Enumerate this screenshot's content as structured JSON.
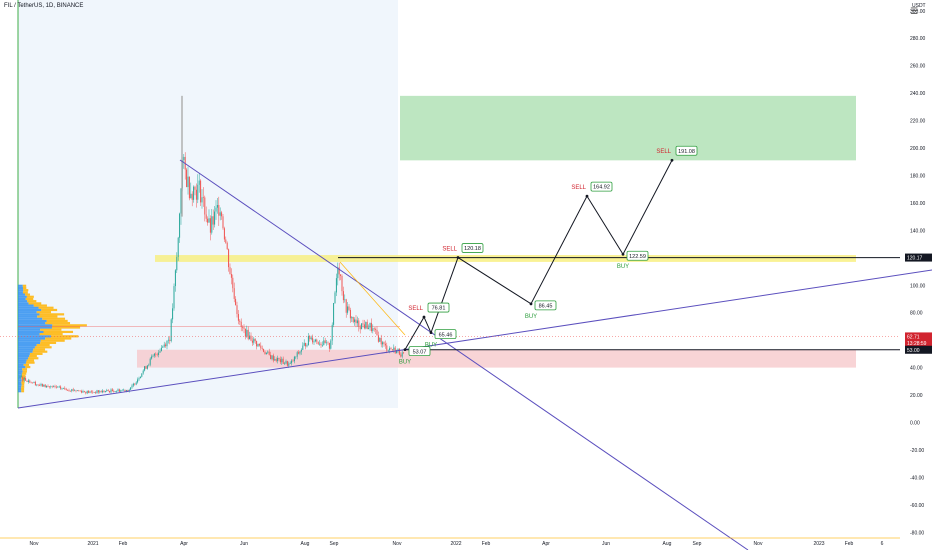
{
  "header": {
    "symbol_title": "FIL / TetherUS, 1D, BINANCE",
    "unit": "USDT",
    "menu_icon": "hamburger-menu-icon"
  },
  "chart_data": {
    "type": "line",
    "title": "",
    "xlabel": "",
    "ylabel": "",
    "x_ticks": [
      "Nov",
      "2021",
      "Feb",
      "Apr",
      "Jun",
      "Aug",
      "Sep",
      "Nov",
      "2022",
      "Feb",
      "Apr",
      "Jun",
      "Aug",
      "Sep",
      "Nov",
      "2023",
      "Feb",
      "6"
    ],
    "y_ticks": [
      300,
      280,
      260,
      240,
      220,
      200,
      180,
      160,
      140,
      120,
      100,
      80,
      60,
      40,
      20,
      0,
      -20,
      -40,
      -60,
      -80
    ],
    "y_tick_labels": [
      "300.00",
      "280.00",
      "260.00",
      "240.00",
      "220.00",
      "200.00",
      "180.00",
      "160.00",
      "140.00",
      "120.00",
      "100.00",
      "80.00",
      "60.00",
      "40.00",
      "20.00",
      "0.00",
      "-20.00",
      "-40.00",
      "-60.00",
      "-80.00"
    ],
    "ylim": [
      -88,
      305
    ],
    "grid": false,
    "price_tags": [
      {
        "text": "120.17",
        "value": 120.17,
        "color": "#131722"
      },
      {
        "text": "62.71",
        "value": 62.71,
        "color": "#d1242f"
      },
      {
        "text": "13:28:59",
        "value": 57.8,
        "color": "#d1242f"
      },
      {
        "text": "53.00",
        "value": 53.0,
        "color": "#131722"
      }
    ],
    "zones": [
      {
        "name": "target-zone",
        "y_from": 191,
        "y_to": 238,
        "color": "#9ad89f"
      },
      {
        "name": "resistance-band",
        "y_from": 117,
        "y_to": 122,
        "color": "#f7ef7a"
      },
      {
        "name": "support-zone",
        "y_from": 40,
        "y_to": 53,
        "color": "#f6c9cc"
      }
    ],
    "horizontal_levels": [
      120.17,
      53.0
    ],
    "projection": {
      "points": [
        {
          "label": "53.07",
          "value": 53.07,
          "signal": "BUY"
        },
        {
          "label": "76.81",
          "value": 76.81,
          "signal": "SELL"
        },
        {
          "label": "65.46",
          "value": 65.46,
          "signal": "BUY"
        },
        {
          "label": "120.18",
          "value": 120.18,
          "signal": "SELL"
        },
        {
          "label": "86.45",
          "value": 86.45,
          "signal": "BUY"
        },
        {
          "label": "164.92",
          "value": 164.92,
          "signal": "SELL"
        },
        {
          "label": "122.59",
          "value": 122.59,
          "signal": "BUY"
        },
        {
          "label": "191.08",
          "value": 191.08,
          "signal": "SELL"
        }
      ]
    },
    "colors": {
      "up": "#26a69a",
      "down": "#ef5350",
      "trendline": "#5b4fbe",
      "volume_profile_up": "#2f8ff0",
      "volume_profile_down": "#ffb300",
      "buy": "#2e9e3e",
      "sell": "#d1242f"
    }
  }
}
